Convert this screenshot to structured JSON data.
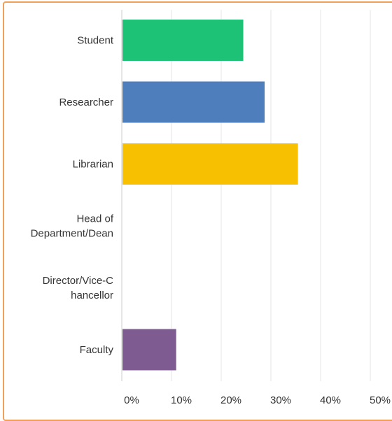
{
  "chart_data": {
    "type": "bar",
    "orientation": "horizontal",
    "categories": [
      [
        "Student"
      ],
      [
        "Researcher"
      ],
      [
        "Librarian"
      ],
      [
        "Head of",
        "Department/Dean"
      ],
      [
        "Director/Vice-C",
        "hancellor"
      ],
      [
        "Faculty"
      ]
    ],
    "values": [
      24.3,
      28.6,
      35.3,
      0,
      0,
      10.8
    ],
    "colors": [
      "#1ec276",
      "#4f7ebc",
      "#f7c000",
      "#999999",
      "#999999",
      "#7e5b90"
    ],
    "xlim": [
      0,
      50
    ],
    "x_ticks": [
      "0%",
      "10%",
      "20%",
      "30%",
      "40%",
      "50%"
    ],
    "grid": true,
    "title": "",
    "xlabel": "",
    "ylabel": ""
  }
}
